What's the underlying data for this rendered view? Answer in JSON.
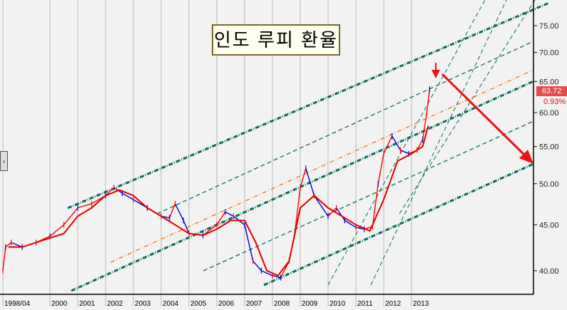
{
  "title": "인도 루피 환율",
  "last_price": "63.72",
  "change_pct": "0.93%",
  "colors": {
    "price_up": "#ff0000",
    "price_down": "#0000cc",
    "ma": "#e00000",
    "channel": "#0b6b5b",
    "mid": "#ff6a00",
    "arrow": "#ee1111"
  },
  "chart_data": {
    "type": "line",
    "title": "인도 루피 환율",
    "xlabel": "",
    "ylabel": "",
    "ylim": [
      37.5,
      78.5
    ],
    "y_ticks": [
      "75.00",
      "70.00",
      "65.00",
      "60.00",
      "55.00",
      "50.00",
      "45.00",
      "40.00"
    ],
    "y_tick_values": [
      75,
      70,
      65,
      60,
      55,
      50,
      45,
      40
    ],
    "x_ticks": [
      "1998/04",
      "2000",
      "2001",
      "2002",
      "2003",
      "2004",
      "2005",
      "2006",
      "2007",
      "2008",
      "2009",
      "2010",
      "2011",
      "2012",
      "2013"
    ],
    "x_tick_values": [
      1998.3,
      2000,
      2001,
      2002,
      2003,
      2004,
      2005,
      2006,
      2007,
      2008,
      2009,
      2010,
      2011,
      2012,
      2013
    ],
    "series": [
      {
        "name": "price",
        "x": [
          1998.3,
          1998.4,
          1998.6,
          1999,
          1999.5,
          2000,
          2000.5,
          2001,
          2001.5,
          2002,
          2002.3,
          2002.6,
          2003,
          2003.5,
          2004,
          2004.3,
          2004.5,
          2004.8,
          2005,
          2005.5,
          2006,
          2006.3,
          2006.6,
          2007,
          2007.3,
          2007.6,
          2008,
          2008.3,
          2008.6,
          2008.8,
          2009,
          2009.2,
          2009.5,
          2010,
          2010.3,
          2010.6,
          2011,
          2011.3,
          2011.6,
          2011.8,
          2012,
          2012.3,
          2012.6,
          2012.9,
          2013.2,
          2013.4,
          2013.55,
          2013.65
        ],
        "y": [
          40,
          42.5,
          43,
          42.5,
          43,
          43.7,
          45,
          47,
          47.5,
          48.5,
          49.5,
          48.8,
          48,
          47,
          46,
          45.8,
          47.5,
          45.5,
          44,
          43.8,
          45,
          46.5,
          46,
          45,
          41,
          40,
          39.5,
          39.3,
          41,
          44,
          49.5,
          52,
          48.5,
          46,
          47,
          45.5,
          44.7,
          44.5,
          44.8,
          50,
          54,
          56.5,
          54.5,
          54,
          54.5,
          56,
          60,
          63.72
        ]
      },
      {
        "name": "moving-average",
        "x": [
          1998.5,
          1999,
          2000,
          2000.5,
          2001,
          2001.5,
          2002,
          2002.5,
          2003,
          2003.5,
          2004,
          2004.5,
          2005,
          2005.5,
          2006,
          2006.5,
          2007,
          2007.4,
          2007.8,
          2008.2,
          2008.6,
          2009,
          2009.5,
          2010,
          2010.5,
          2011,
          2011.5,
          2012,
          2012.5,
          2013,
          2013.4,
          2013.6
        ],
        "y": [
          42.5,
          42.5,
          43.5,
          44,
          46,
          47,
          48.5,
          49.2,
          48.5,
          47,
          46,
          45,
          44,
          43.8,
          44.5,
          45.5,
          45.5,
          43,
          40,
          39.5,
          41,
          47,
          48.5,
          47,
          46,
          45,
          44.3,
          48,
          53,
          54,
          55,
          58
        ]
      }
    ],
    "trend_channels": [
      "upper",
      "mid",
      "lower",
      "fan lines"
    ],
    "annotations": [
      "down-arrow at 2013.6",
      "projection arrow down to ~52"
    ]
  }
}
